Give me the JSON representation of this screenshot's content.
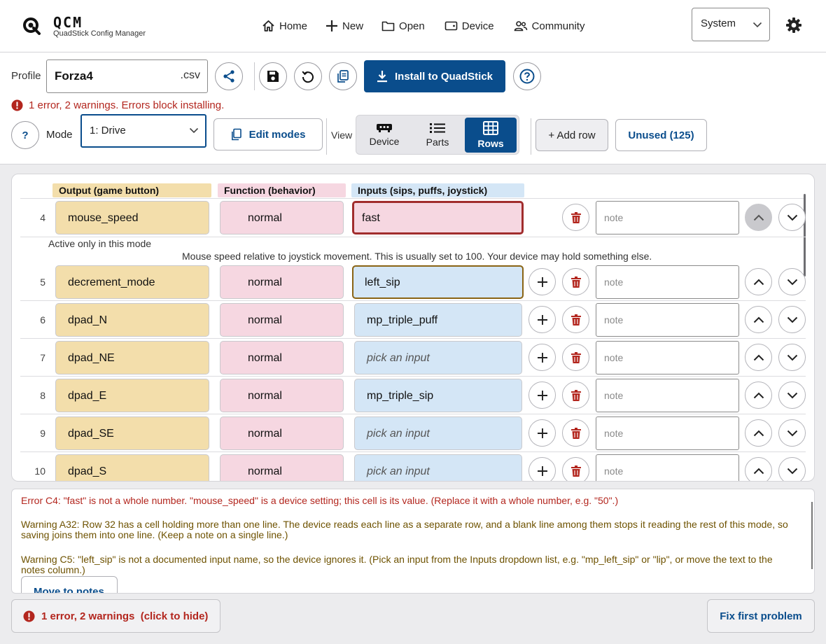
{
  "app": {
    "brand_name": "QCM",
    "brand_subtitle": "QuadStick Config Manager",
    "accent_color": "#0a4d8c",
    "error_color": "#b3261e"
  },
  "nav": {
    "home": "Home",
    "new": "New",
    "open": "Open",
    "device": "Device",
    "community": "Community"
  },
  "theme": {
    "selected": "System"
  },
  "toolbar": {
    "profile_label": "Profile",
    "profile_name": "Forza4",
    "profile_ext": ".csv",
    "install_label": "Install to QuadStick",
    "help_glyph": "?",
    "status_text": "1 error, 2 warnings. Errors block installing.",
    "mode_label": "Mode",
    "mode_selected": "1: Drive",
    "edit_modes_label": "Edit modes",
    "view_label": "View",
    "view_options": [
      "Device",
      "Parts",
      "Rows"
    ],
    "view_active": "Rows",
    "add_row_label": "+ Add row",
    "unused_label": "Unused (125)"
  },
  "table": {
    "headers": {
      "output": "Output (game button)",
      "function": "Function (behavior)",
      "inputs": "Inputs (sips, puffs, joystick)"
    },
    "note_placeholder": "note",
    "rows": [
      {
        "num": "4",
        "output": "mouse_speed",
        "function": "normal",
        "input": "fast"
      },
      {
        "num": "5",
        "output": "decrement_mode",
        "function": "normal",
        "input": "left_sip"
      },
      {
        "num": "6",
        "output": "dpad_N",
        "function": "normal",
        "input": "mp_triple_puff"
      },
      {
        "num": "7",
        "output": "dpad_NE",
        "function": "normal",
        "input": "pick an input"
      },
      {
        "num": "8",
        "output": "dpad_E",
        "function": "normal",
        "input": "mp_triple_sip"
      },
      {
        "num": "9",
        "output": "dpad_SE",
        "function": "normal",
        "input": "pick an input"
      },
      {
        "num": "10",
        "output": "dpad_S",
        "function": "normal",
        "input": "pick an input"
      }
    ],
    "row4_active_only": "Active only in this mode",
    "row4_description": "Mouse speed relative to joystick movement. This is usually set to 100. Your device may hold something else."
  },
  "messages": {
    "error": "Error C4: \"fast\" is not a whole number. \"mouse_speed\" is a device setting; this cell is its value. (Replace it with a whole number, e.g. \"50\".)",
    "warning_1": "Warning A32: Row 32 has a cell holding more than one line. The device reads each line as a separate row, and a blank line among them stops it reading the rest of this mode, so saving joins them into one line. (Keep a note on a single line.)",
    "warning_2": "Warning C5: \"left_sip\" is not a documented input name, so the device ignores it. (Pick an input from the Inputs dropdown list, e.g. \"mp_left_sip\" or \"lip\", or move the text to the notes column.)",
    "move_notes_label": "Move to notes"
  },
  "footer": {
    "status_toggle": "1 error, 2 warnings  (click to hide)",
    "fix_first_label": "Fix first problem"
  },
  "icons": {
    "logo": "quadstick-logo-icon",
    "settings": "gear-icon",
    "share": "share-icon",
    "save": "save-icon",
    "revert": "undo-icon",
    "copy": "copy-icon",
    "install": "download-icon",
    "help": "help-icon",
    "delete": "trash-icon",
    "add": "plus-icon",
    "move_up": "chevron-up-icon",
    "move_down": "chevron-down-icon"
  }
}
